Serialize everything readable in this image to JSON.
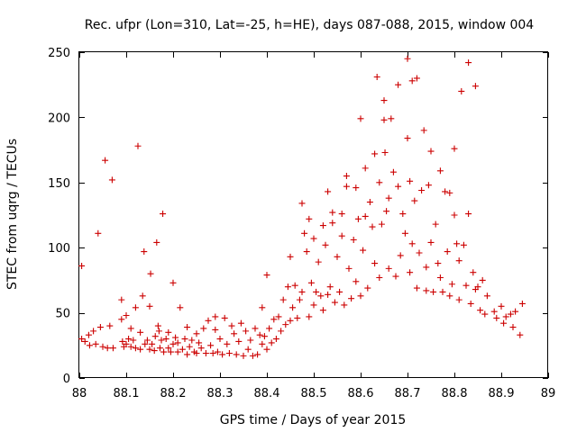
{
  "chart_data": {
    "type": "scatter",
    "title": "Rec. ufpr (Lon=310, Lat=-25, h=HE), days 087-088, 2015, window 004",
    "xlabel": "GPS time / Days of year 2015",
    "ylabel": "STEC from uqrg / TECUs",
    "xlim": [
      88,
      89
    ],
    "ylim": [
      0,
      250
    ],
    "xticks": [
      "88",
      "88.1",
      "88.2",
      "88.3",
      "88.4",
      "88.5",
      "88.6",
      "88.7",
      "88.8",
      "88.9",
      "89"
    ],
    "yticks": [
      "0",
      "50",
      "100",
      "150",
      "200",
      "250"
    ],
    "marker": "+",
    "color": "#cc0000",
    "grid": false,
    "points": [
      [
        88.005,
        86
      ],
      [
        88.005,
        30
      ],
      [
        88.012,
        28
      ],
      [
        88.02,
        33
      ],
      [
        88.022,
        25
      ],
      [
        88.03,
        36
      ],
      [
        88.035,
        26
      ],
      [
        88.04,
        111
      ],
      [
        88.045,
        39
      ],
      [
        88.05,
        24
      ],
      [
        88.055,
        167
      ],
      [
        88.06,
        23
      ],
      [
        88.065,
        40
      ],
      [
        88.07,
        152
      ],
      [
        88.072,
        23
      ],
      [
        88.09,
        60
      ],
      [
        88.09,
        45
      ],
      [
        88.092,
        28
      ],
      [
        88.095,
        24
      ],
      [
        88.1,
        48
      ],
      [
        88.1,
        26
      ],
      [
        88.105,
        30
      ],
      [
        88.11,
        24
      ],
      [
        88.11,
        38
      ],
      [
        88.115,
        29
      ],
      [
        88.12,
        54
      ],
      [
        88.12,
        23
      ],
      [
        88.125,
        178
      ],
      [
        88.13,
        35
      ],
      [
        88.13,
        22
      ],
      [
        88.135,
        63
      ],
      [
        88.138,
        97
      ],
      [
        88.14,
        26
      ],
      [
        88.145,
        29
      ],
      [
        88.15,
        22
      ],
      [
        88.15,
        55
      ],
      [
        88.152,
        80
      ],
      [
        88.155,
        26
      ],
      [
        88.16,
        21
      ],
      [
        88.162,
        32
      ],
      [
        88.165,
        104
      ],
      [
        88.168,
        40
      ],
      [
        88.17,
        36
      ],
      [
        88.172,
        23
      ],
      [
        88.175,
        29
      ],
      [
        88.178,
        126
      ],
      [
        88.18,
        20
      ],
      [
        88.185,
        30
      ],
      [
        88.19,
        35
      ],
      [
        88.19,
        23
      ],
      [
        88.195,
        20
      ],
      [
        88.2,
        73
      ],
      [
        88.2,
        26
      ],
      [
        88.205,
        31
      ],
      [
        88.21,
        20
      ],
      [
        88.21,
        27
      ],
      [
        88.215,
        54
      ],
      [
        88.22,
        22
      ],
      [
        88.225,
        30
      ],
      [
        88.23,
        18
      ],
      [
        88.23,
        39
      ],
      [
        88.235,
        24
      ],
      [
        88.24,
        29
      ],
      [
        88.245,
        20
      ],
      [
        88.25,
        34
      ],
      [
        88.25,
        19
      ],
      [
        88.255,
        27
      ],
      [
        88.26,
        23
      ],
      [
        88.265,
        38
      ],
      [
        88.27,
        19
      ],
      [
        88.275,
        44
      ],
      [
        88.28,
        25
      ],
      [
        88.285,
        19
      ],
      [
        88.29,
        37
      ],
      [
        88.29,
        47
      ],
      [
        88.295,
        20
      ],
      [
        88.3,
        30
      ],
      [
        88.305,
        18
      ],
      [
        88.31,
        46
      ],
      [
        88.315,
        26
      ],
      [
        88.32,
        19
      ],
      [
        88.325,
        40
      ],
      [
        88.33,
        34
      ],
      [
        88.335,
        18
      ],
      [
        88.34,
        28
      ],
      [
        88.345,
        42
      ],
      [
        88.35,
        17
      ],
      [
        88.355,
        36
      ],
      [
        88.36,
        22
      ],
      [
        88.365,
        29
      ],
      [
        88.37,
        17
      ],
      [
        88.375,
        38
      ],
      [
        88.38,
        18
      ],
      [
        88.385,
        33
      ],
      [
        88.39,
        54
      ],
      [
        88.39,
        26
      ],
      [
        88.395,
        32
      ],
      [
        88.4,
        79
      ],
      [
        88.4,
        22
      ],
      [
        88.405,
        38
      ],
      [
        88.41,
        27
      ],
      [
        88.415,
        45
      ],
      [
        88.42,
        30
      ],
      [
        88.425,
        47
      ],
      [
        88.43,
        36
      ],
      [
        88.435,
        60
      ],
      [
        88.44,
        41
      ],
      [
        88.445,
        70
      ],
      [
        88.45,
        93
      ],
      [
        88.45,
        44
      ],
      [
        88.455,
        54
      ],
      [
        88.46,
        71
      ],
      [
        88.465,
        46
      ],
      [
        88.47,
        60
      ],
      [
        88.475,
        134
      ],
      [
        88.475,
        66
      ],
      [
        88.48,
        111
      ],
      [
        88.485,
        97
      ],
      [
        88.49,
        47
      ],
      [
        88.49,
        122
      ],
      [
        88.495,
        73
      ],
      [
        88.5,
        107
      ],
      [
        88.5,
        56
      ],
      [
        88.505,
        66
      ],
      [
        88.51,
        89
      ],
      [
        88.515,
        63
      ],
      [
        88.52,
        117
      ],
      [
        88.52,
        52
      ],
      [
        88.525,
        102
      ],
      [
        88.53,
        143
      ],
      [
        88.53,
        64
      ],
      [
        88.535,
        70
      ],
      [
        88.54,
        119
      ],
      [
        88.54,
        127
      ],
      [
        88.545,
        58
      ],
      [
        88.55,
        93
      ],
      [
        88.555,
        66
      ],
      [
        88.56,
        109
      ],
      [
        88.56,
        126
      ],
      [
        88.565,
        56
      ],
      [
        88.57,
        147
      ],
      [
        88.57,
        155
      ],
      [
        88.575,
        84
      ],
      [
        88.58,
        61
      ],
      [
        88.585,
        106
      ],
      [
        88.59,
        146
      ],
      [
        88.59,
        74
      ],
      [
        88.595,
        122
      ],
      [
        88.6,
        199
      ],
      [
        88.6,
        63
      ],
      [
        88.605,
        98
      ],
      [
        88.61,
        161
      ],
      [
        88.61,
        124
      ],
      [
        88.615,
        69
      ],
      [
        88.62,
        135
      ],
      [
        88.625,
        116
      ],
      [
        88.63,
        172
      ],
      [
        88.63,
        88
      ],
      [
        88.635,
        231
      ],
      [
        88.64,
        150
      ],
      [
        88.64,
        77
      ],
      [
        88.645,
        118
      ],
      [
        88.65,
        213
      ],
      [
        88.65,
        198
      ],
      [
        88.652,
        173
      ],
      [
        88.655,
        128
      ],
      [
        88.66,
        138
      ],
      [
        88.66,
        84
      ],
      [
        88.665,
        199
      ],
      [
        88.67,
        158
      ],
      [
        88.675,
        78
      ],
      [
        88.68,
        225
      ],
      [
        88.68,
        147
      ],
      [
        88.685,
        94
      ],
      [
        88.69,
        126
      ],
      [
        88.695,
        111
      ],
      [
        88.7,
        245
      ],
      [
        88.7,
        184
      ],
      [
        88.705,
        151
      ],
      [
        88.705,
        81
      ],
      [
        88.71,
        228
      ],
      [
        88.71,
        103
      ],
      [
        88.715,
        136
      ],
      [
        88.72,
        230
      ],
      [
        88.72,
        69
      ],
      [
        88.725,
        96
      ],
      [
        88.73,
        144
      ],
      [
        88.735,
        190
      ],
      [
        88.74,
        67
      ],
      [
        88.74,
        85
      ],
      [
        88.745,
        148
      ],
      [
        88.75,
        174
      ],
      [
        88.75,
        104
      ],
      [
        88.755,
        66
      ],
      [
        88.76,
        118
      ],
      [
        88.765,
        88
      ],
      [
        88.77,
        159
      ],
      [
        88.77,
        77
      ],
      [
        88.775,
        66
      ],
      [
        88.78,
        143
      ],
      [
        88.785,
        97
      ],
      [
        88.79,
        142
      ],
      [
        88.79,
        63
      ],
      [
        88.795,
        72
      ],
      [
        88.8,
        176
      ],
      [
        88.8,
        125
      ],
      [
        88.805,
        103
      ],
      [
        88.81,
        90
      ],
      [
        88.81,
        60
      ],
      [
        88.815,
        220
      ],
      [
        88.82,
        102
      ],
      [
        88.825,
        71
      ],
      [
        88.83,
        126
      ],
      [
        88.83,
        242
      ],
      [
        88.835,
        57
      ],
      [
        88.84,
        81
      ],
      [
        88.845,
        68
      ],
      [
        88.845,
        224
      ],
      [
        88.85,
        70
      ],
      [
        88.855,
        52
      ],
      [
        88.86,
        75
      ],
      [
        88.865,
        49
      ],
      [
        88.87,
        63
      ],
      [
        88.885,
        51
      ],
      [
        88.89,
        46
      ],
      [
        88.9,
        55
      ],
      [
        88.905,
        42
      ],
      [
        88.91,
        47
      ],
      [
        88.92,
        49
      ],
      [
        88.925,
        39
      ],
      [
        88.93,
        51
      ],
      [
        88.94,
        33
      ],
      [
        88.945,
        57
      ]
    ]
  }
}
